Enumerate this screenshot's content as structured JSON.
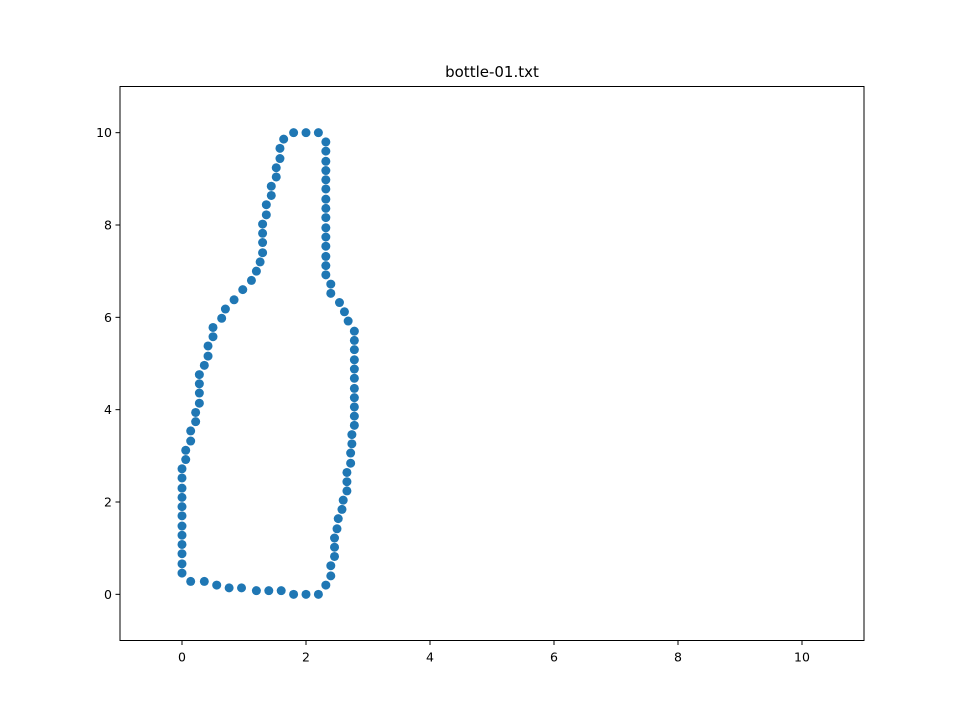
{
  "chart_data": {
    "type": "scatter",
    "title": "bottle-01.txt",
    "xlabel": "",
    "ylabel": "",
    "xlim": [
      -1,
      11
    ],
    "ylim": [
      -1,
      11
    ],
    "xticks": [
      0,
      2,
      4,
      6,
      8,
      10
    ],
    "yticks": [
      0,
      2,
      4,
      6,
      8,
      10
    ],
    "grid": false,
    "marker_color": "#1f77b4",
    "points": [
      [
        1.8,
        10.0
      ],
      [
        2.0,
        10.0
      ],
      [
        2.2,
        10.0
      ],
      [
        2.32,
        9.8
      ],
      [
        2.32,
        9.6
      ],
      [
        2.32,
        9.38
      ],
      [
        2.32,
        9.18
      ],
      [
        2.32,
        8.98
      ],
      [
        2.32,
        8.78
      ],
      [
        2.32,
        8.56
      ],
      [
        2.32,
        8.36
      ],
      [
        2.32,
        8.16
      ],
      [
        2.32,
        7.94
      ],
      [
        2.32,
        7.74
      ],
      [
        2.32,
        7.54
      ],
      [
        2.32,
        7.32
      ],
      [
        2.32,
        7.12
      ],
      [
        2.32,
        6.92
      ],
      [
        2.4,
        6.72
      ],
      [
        2.4,
        6.52
      ],
      [
        2.54,
        6.32
      ],
      [
        2.62,
        6.12
      ],
      [
        2.68,
        5.92
      ],
      [
        2.78,
        5.7
      ],
      [
        2.78,
        5.5
      ],
      [
        2.78,
        5.3
      ],
      [
        2.78,
        5.08
      ],
      [
        2.78,
        4.88
      ],
      [
        2.78,
        4.68
      ],
      [
        2.78,
        4.46
      ],
      [
        2.78,
        4.26
      ],
      [
        2.78,
        4.06
      ],
      [
        2.78,
        3.86
      ],
      [
        2.78,
        3.66
      ],
      [
        2.74,
        3.46
      ],
      [
        2.74,
        3.26
      ],
      [
        2.72,
        3.06
      ],
      [
        2.72,
        2.84
      ],
      [
        2.66,
        2.64
      ],
      [
        2.66,
        2.44
      ],
      [
        2.66,
        2.24
      ],
      [
        2.6,
        2.04
      ],
      [
        2.58,
        1.84
      ],
      [
        2.52,
        1.64
      ],
      [
        2.5,
        1.42
      ],
      [
        2.46,
        1.22
      ],
      [
        2.46,
        1.02
      ],
      [
        2.46,
        0.82
      ],
      [
        2.4,
        0.62
      ],
      [
        2.4,
        0.4
      ],
      [
        2.32,
        0.2
      ],
      [
        2.2,
        0.0
      ],
      [
        2.0,
        0.0
      ],
      [
        1.8,
        0.0
      ],
      [
        1.6,
        0.08
      ],
      [
        1.4,
        0.08
      ],
      [
        1.2,
        0.08
      ],
      [
        0.96,
        0.14
      ],
      [
        0.76,
        0.14
      ],
      [
        0.56,
        0.2
      ],
      [
        0.36,
        0.28
      ],
      [
        0.14,
        0.28
      ],
      [
        0.0,
        0.46
      ],
      [
        0.0,
        0.66
      ],
      [
        0.0,
        0.88
      ],
      [
        0.0,
        1.08
      ],
      [
        0.0,
        1.28
      ],
      [
        0.0,
        1.48
      ],
      [
        0.0,
        1.7
      ],
      [
        0.0,
        1.9
      ],
      [
        0.0,
        2.1
      ],
      [
        0.0,
        2.3
      ],
      [
        0.0,
        2.52
      ],
      [
        0.0,
        2.72
      ],
      [
        0.06,
        2.92
      ],
      [
        0.06,
        3.12
      ],
      [
        0.14,
        3.32
      ],
      [
        0.14,
        3.54
      ],
      [
        0.22,
        3.74
      ],
      [
        0.22,
        3.94
      ],
      [
        0.28,
        4.14
      ],
      [
        0.28,
        4.36
      ],
      [
        0.28,
        4.56
      ],
      [
        0.28,
        4.76
      ],
      [
        0.36,
        4.96
      ],
      [
        0.42,
        5.16
      ],
      [
        0.42,
        5.38
      ],
      [
        0.5,
        5.58
      ],
      [
        0.5,
        5.78
      ],
      [
        0.64,
        5.98
      ],
      [
        0.7,
        6.18
      ],
      [
        0.84,
        6.38
      ],
      [
        0.98,
        6.6
      ],
      [
        1.12,
        6.8
      ],
      [
        1.2,
        7.0
      ],
      [
        1.26,
        7.2
      ],
      [
        1.3,
        7.4
      ],
      [
        1.3,
        7.62
      ],
      [
        1.3,
        7.82
      ],
      [
        1.3,
        8.02
      ],
      [
        1.36,
        8.22
      ],
      [
        1.36,
        8.44
      ],
      [
        1.44,
        8.64
      ],
      [
        1.44,
        8.84
      ],
      [
        1.52,
        9.04
      ],
      [
        1.52,
        9.24
      ],
      [
        1.58,
        9.44
      ],
      [
        1.58,
        9.66
      ],
      [
        1.64,
        9.86
      ]
    ]
  }
}
